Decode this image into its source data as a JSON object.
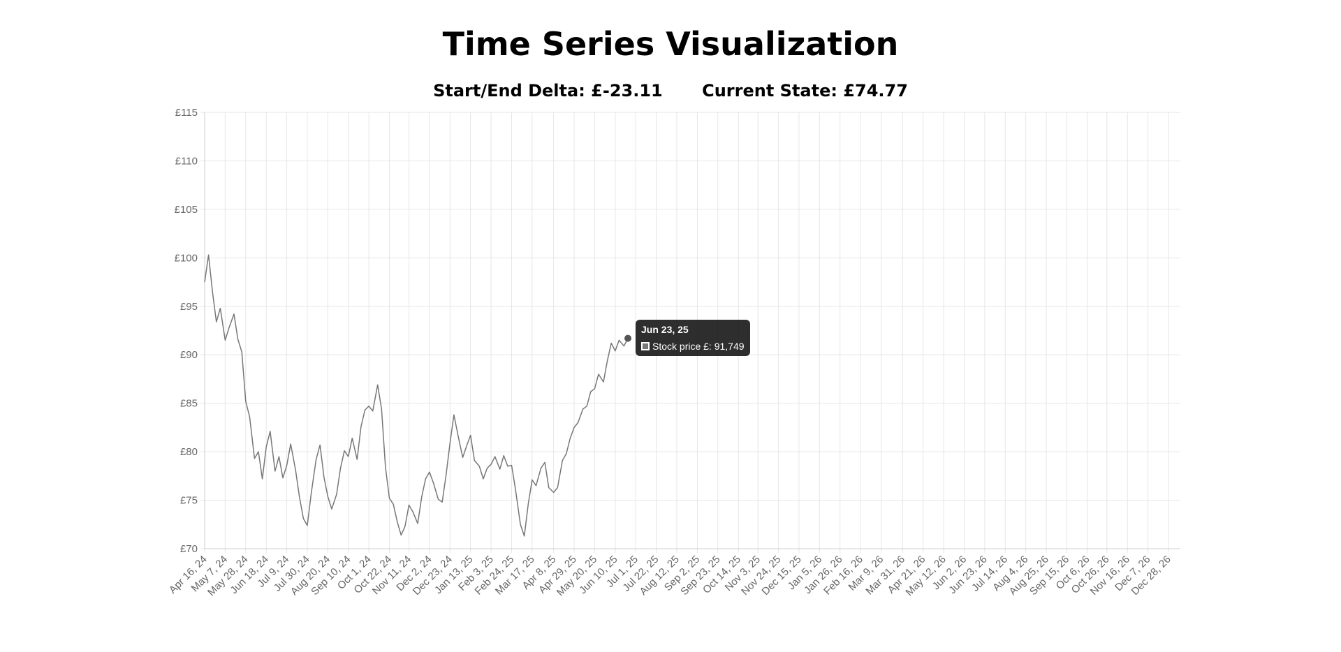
{
  "page": {
    "title": "Time Series Visualization",
    "delta_label": "Start/End Delta: £-23.11",
    "current_label": "Current State: £74.77"
  },
  "tooltip": {
    "title": "Jun 23, 25",
    "label": "Stock price £: 91,749"
  },
  "colors": {
    "line": "#777777",
    "grid": "#e6e6e6",
    "tick": "#666666"
  },
  "chart_data": {
    "type": "line",
    "title": "",
    "xlabel": "",
    "ylabel": "",
    "ylim": [
      70,
      115
    ],
    "y_ticks": [
      "£70",
      "£75",
      "£80",
      "£85",
      "£90",
      "£95",
      "£100",
      "£105",
      "£110",
      "£115"
    ],
    "x_tick_labels": [
      "Apr 16, 24",
      "May 7, 24",
      "May 28, 24",
      "Jun 18, 24",
      "Jul 9, 24",
      "Jul 30, 24",
      "Aug 20, 24",
      "Sep 10, 24",
      "Oct 1, 24",
      "Oct 22, 24",
      "Nov 11, 24",
      "Dec 2, 24",
      "Dec 23, 24",
      "Jan 13, 25",
      "Feb 3, 25",
      "Feb 24, 25",
      "Mar 17, 25",
      "Apr 8, 25",
      "Apr 29, 25",
      "May 20, 25",
      "Jun 10, 25",
      "Jul 1, 25",
      "Jul 22, 25",
      "Aug 12, 25",
      "Sep 2, 25",
      "Sep 23, 25",
      "Oct 14, 25",
      "Nov 3, 25",
      "Nov 24, 25",
      "Dec 15, 25",
      "Jan 5, 26",
      "Jan 26, 26",
      "Feb 16, 26",
      "Mar 9, 26",
      "Mar 31, 26",
      "Apr 21, 26",
      "May 12, 26",
      "Jun 2, 26",
      "Jun 23, 26",
      "Jul 14, 26",
      "Aug 4, 26",
      "Aug 25, 26",
      "Sep 15, 26",
      "Oct 6, 26",
      "Oct 26, 26",
      "Nov 16, 26",
      "Dec 7, 26",
      "Dec 28, 26"
    ],
    "series": [
      {
        "name": "Stock price £",
        "x": [
          "Apr 16, 24",
          "Apr 20, 24",
          "Apr 24, 24",
          "Apr 28, 24",
          "May 2, 24",
          "May 7, 24",
          "May 11, 24",
          "May 16, 24",
          "May 20, 24",
          "May 24, 24",
          "May 28, 24",
          "Jun 1, 24",
          "Jun 6, 24",
          "Jun 10, 24",
          "Jun 14, 24",
          "Jun 18, 24",
          "Jun 22, 24",
          "Jun 27, 24",
          "Jul 1, 24",
          "Jul 5, 24",
          "Jul 9, 24",
          "Jul 13, 24",
          "Jul 18, 24",
          "Jul 22, 24",
          "Jul 26, 24",
          "Jul 30, 24",
          "Aug 3, 24",
          "Aug 8, 24",
          "Aug 12, 24",
          "Aug 16, 24",
          "Aug 20, 24",
          "Aug 24, 24",
          "Aug 29, 24",
          "Sep 2, 24",
          "Sep 6, 24",
          "Sep 10, 24",
          "Sep 14, 24",
          "Sep 19, 24",
          "Sep 23, 24",
          "Sep 27, 24",
          "Oct 1, 24",
          "Oct 5, 24",
          "Oct 10, 24",
          "Oct 14, 24",
          "Oct 18, 24",
          "Oct 22, 24",
          "Oct 26, 24",
          "Oct 30, 24",
          "Nov 3, 24",
          "Nov 7, 24",
          "Nov 11, 24",
          "Nov 15, 24",
          "Nov 20, 24",
          "Nov 24, 24",
          "Nov 28, 24",
          "Dec 2, 24",
          "Dec 6, 24",
          "Dec 11, 24",
          "Dec 15, 24",
          "Dec 19, 24",
          "Dec 23, 24",
          "Dec 27, 24",
          "Jan 1, 25",
          "Jan 5, 25",
          "Jan 9, 25",
          "Jan 13, 25",
          "Jan 17, 25",
          "Jan 22, 25",
          "Jan 26, 25",
          "Jan 30, 25",
          "Feb 3, 25",
          "Feb 7, 25",
          "Feb 12, 25",
          "Feb 16, 25",
          "Feb 20, 25",
          "Feb 24, 25",
          "Feb 28, 25",
          "Mar 5, 25",
          "Mar 9, 25",
          "Mar 13, 25",
          "Mar 17, 25",
          "Mar 21, 25",
          "Mar 26, 25",
          "Mar 30, 25",
          "Apr 3, 25",
          "Apr 8, 25",
          "Apr 12, 25",
          "Apr 17, 25",
          "Apr 21, 25",
          "Apr 25, 25",
          "Apr 29, 25",
          "May 3, 25",
          "May 8, 25",
          "May 12, 25",
          "May 16, 25",
          "May 20, 25",
          "May 24, 25",
          "May 29, 25",
          "Jun 2, 25",
          "Jun 6, 25",
          "Jun 10, 25",
          "Jun 14, 25",
          "Jun 19, 25",
          "Jun 23, 25"
        ],
        "y": [
          97.5,
          100.3,
          96.5,
          93.4,
          94.8,
          91.5,
          92.8,
          94.2,
          91.6,
          90.3,
          85.2,
          83.6,
          79.3,
          80.0,
          77.2,
          80.5,
          82.1,
          78.0,
          79.5,
          77.3,
          78.6,
          80.8,
          78.1,
          75.3,
          73.1,
          72.4,
          75.7,
          79.2,
          80.7,
          77.4,
          75.4,
          74.1,
          75.6,
          78.3,
          80.1,
          79.5,
          81.4,
          79.2,
          82.6,
          84.3,
          84.7,
          84.2,
          86.9,
          84.4,
          78.4,
          75.2,
          74.6,
          72.8,
          71.4,
          72.3,
          74.5,
          73.8,
          72.6,
          75.3,
          77.2,
          77.9,
          76.8,
          75.1,
          74.8,
          77.6,
          80.9,
          83.8,
          81.3,
          79.4,
          80.6,
          81.7,
          79.1,
          78.5,
          77.2,
          78.3,
          78.7,
          79.5,
          78.2,
          79.6,
          78.5,
          78.6,
          76.1,
          72.5,
          71.3,
          74.6,
          77.1,
          76.5,
          78.3,
          78.9,
          76.3,
          75.8,
          76.3,
          79.1,
          79.8,
          81.4,
          82.5,
          83.0,
          84.4,
          84.7,
          86.2,
          86.5,
          88.0,
          87.2,
          89.4,
          91.2,
          90.4,
          91.5,
          90.9,
          91.7
        ]
      }
    ]
  }
}
